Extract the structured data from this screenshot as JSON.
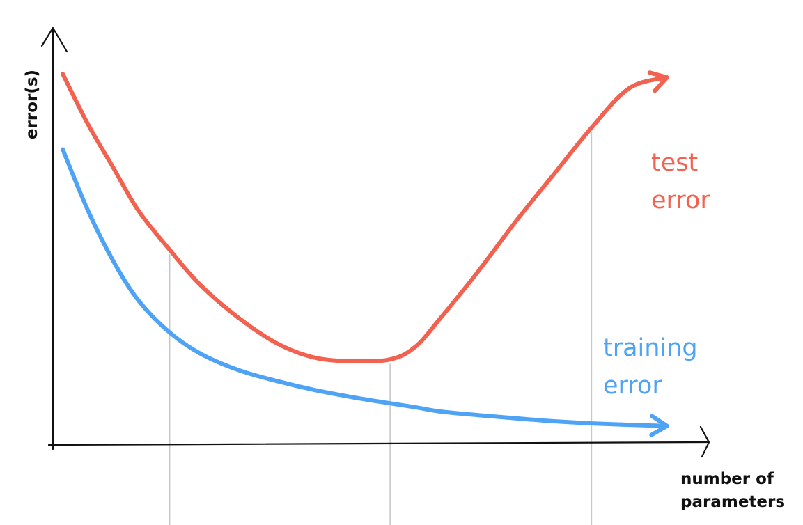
{
  "chart_data": {
    "type": "line",
    "title": "",
    "ylabel": "error(s)",
    "xlabel_lines": [
      "number of",
      "parameters"
    ],
    "x_range": [
      0,
      100
    ],
    "y_range": [
      0,
      100
    ],
    "grid": false,
    "x": [
      0,
      4,
      8,
      12,
      17,
      22,
      28,
      34,
      40,
      46,
      52,
      56,
      60,
      66,
      72,
      78,
      84,
      90,
      96
    ],
    "series": [
      {
        "key": "test",
        "name_lines": [
          "test",
          "error"
        ],
        "color": "#f26250",
        "values": [
          100,
          86,
          74,
          62,
          51,
          41,
          32,
          25,
          21,
          20,
          20.5,
          24,
          32,
          45,
          59,
          72,
          85,
          96,
          99
        ]
      },
      {
        "key": "training",
        "name_lines": [
          "training",
          "error"
        ],
        "color": "#4ea3f5",
        "values": [
          79,
          62,
          48,
          37,
          28,
          22,
          17.5,
          14.5,
          12,
          10,
          8.3,
          7.2,
          6,
          5,
          4.1,
          3.3,
          2.7,
          2.3,
          2
        ]
      }
    ],
    "reference_x": [
      17,
      52,
      84
    ],
    "line_style": "hand-drawn"
  }
}
